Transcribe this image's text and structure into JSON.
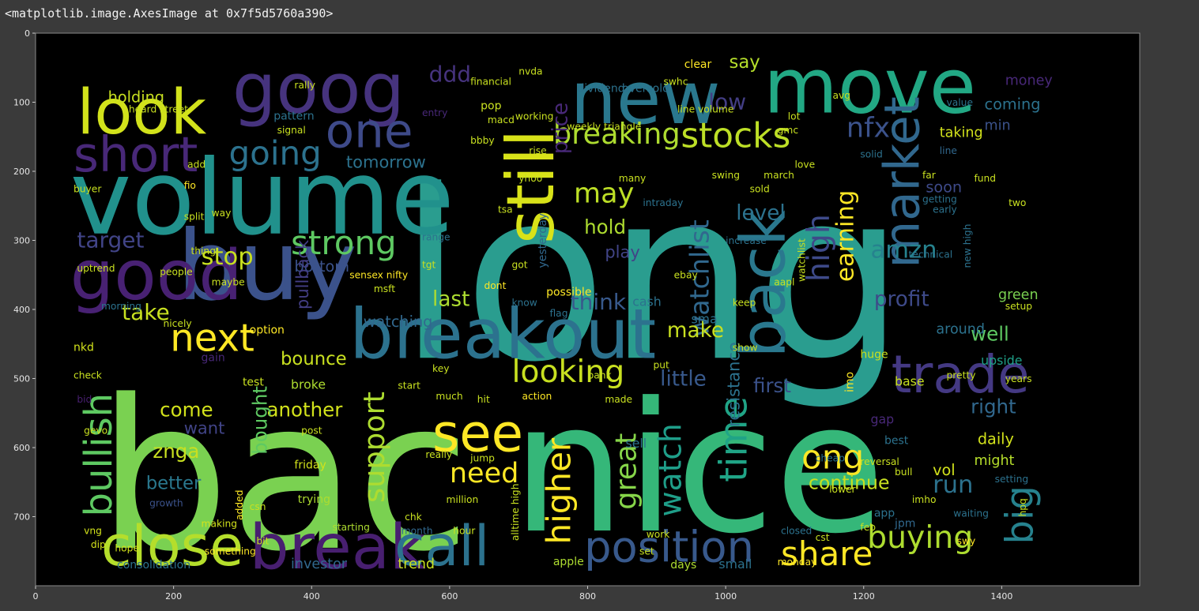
{
  "output_repr": "<matplotlib.image.AxesImage at 0x7f5d5760a390>",
  "image": {
    "background": "#000000",
    "x_ticks": [
      "0",
      "200",
      "400",
      "600",
      "800",
      "1000",
      "1200",
      "1400"
    ],
    "y_ticks": [
      "0",
      "100",
      "200",
      "300",
      "400",
      "500",
      "600",
      "700"
    ]
  },
  "words": [
    {
      "text": "long",
      "color": "#2a9d8f"
    },
    {
      "text": "bac",
      "color": "#7ad151"
    },
    {
      "text": "nice",
      "color": "#35b779"
    },
    {
      "text": "volume",
      "color": "#21918c"
    },
    {
      "text": "buy",
      "color": "#3b528b"
    },
    {
      "text": "goog",
      "color": "#46337e"
    },
    {
      "text": "move",
      "color": "#22a884"
    },
    {
      "text": "new",
      "color": "#2a788e"
    },
    {
      "text": "look",
      "color": "#d2e21b"
    },
    {
      "text": "good",
      "color": "#482173"
    },
    {
      "text": "breakout",
      "color": "#2c728e"
    },
    {
      "text": "still",
      "color": "#d8e219"
    },
    {
      "text": "back",
      "color": "#2a788e"
    },
    {
      "text": "market",
      "color": "#31688e"
    },
    {
      "text": "trade",
      "color": "#443983"
    },
    {
      "text": "break",
      "color": "#481f70"
    },
    {
      "text": "close",
      "color": "#b5de2b"
    },
    {
      "text": "call",
      "color": "#2c728e"
    },
    {
      "text": "position",
      "color": "#38598c"
    },
    {
      "text": "see",
      "color": "#fde725"
    },
    {
      "text": "next",
      "color": "#fde725"
    },
    {
      "text": "short",
      "color": "#482878"
    },
    {
      "text": "one",
      "color": "#3e4a89"
    },
    {
      "text": "going",
      "color": "#2c728e"
    },
    {
      "text": "strong",
      "color": "#5ec962"
    },
    {
      "text": "stocks",
      "color": "#bddf26"
    },
    {
      "text": "breaking",
      "color": "#addc30"
    },
    {
      "text": "looking",
      "color": "#c8e020"
    },
    {
      "text": "time",
      "color": "#20a486"
    },
    {
      "text": "big",
      "color": "#26828e"
    },
    {
      "text": "bullish",
      "color": "#5ec962"
    },
    {
      "text": "higher",
      "color": "#fde725"
    },
    {
      "text": "share",
      "color": "#fde725"
    },
    {
      "text": "buying",
      "color": "#addc30"
    },
    {
      "text": "ong",
      "color": "#fde725"
    },
    {
      "text": "need",
      "color": "#fde725"
    },
    {
      "text": "support",
      "color": "#addc30"
    },
    {
      "text": "great",
      "color": "#86d549"
    },
    {
      "text": "watch",
      "color": "#1f9e89"
    },
    {
      "text": "high",
      "color": "#3e4a89"
    },
    {
      "text": "nfx",
      "color": "#3b528b"
    },
    {
      "text": "may",
      "color": "#bddf26"
    },
    {
      "text": "stop",
      "color": "#c8e020"
    },
    {
      "text": "take",
      "color": "#c8e020"
    },
    {
      "text": "target",
      "color": "#414487"
    },
    {
      "text": "watchlist",
      "color": "#31688e"
    },
    {
      "text": "earning",
      "color": "#fde725"
    },
    {
      "text": "price",
      "color": "#482878"
    },
    {
      "text": "amzn",
      "color": "#26828e"
    },
    {
      "text": "run",
      "color": "#2c728e"
    },
    {
      "text": "continue",
      "color": "#c8e020"
    },
    {
      "text": "profit",
      "color": "#3e4a89"
    },
    {
      "text": "ddd",
      "color": "#46337e"
    },
    {
      "text": "low",
      "color": "#433e85"
    },
    {
      "text": "say",
      "color": "#b5de2b"
    },
    {
      "text": "last",
      "color": "#addc30"
    },
    {
      "text": "think",
      "color": "#38598c"
    },
    {
      "text": "make",
      "color": "#c8e020"
    },
    {
      "text": "little",
      "color": "#38598c"
    },
    {
      "text": "first",
      "color": "#3b528b"
    },
    {
      "text": "level",
      "color": "#2c728e"
    },
    {
      "text": "hold",
      "color": "#addc30"
    },
    {
      "text": "play",
      "color": "#414487"
    },
    {
      "text": "bounce",
      "color": "#c8e020"
    },
    {
      "text": "come",
      "color": "#d2e21b"
    },
    {
      "text": "want",
      "color": "#414487"
    },
    {
      "text": "znga",
      "color": "#c8e020"
    },
    {
      "text": "better",
      "color": "#2a788e"
    },
    {
      "text": "another",
      "color": "#d2e21b"
    },
    {
      "text": "bought",
      "color": "#5ec962"
    },
    {
      "text": "watching",
      "color": "#31688e"
    },
    {
      "text": "tomorrow",
      "color": "#2c728e"
    },
    {
      "text": "bottom",
      "color": "#3b528b"
    },
    {
      "text": "pullback",
      "color": "#433e85"
    },
    {
      "text": "resistance",
      "color": "#2c728e"
    },
    {
      "text": "soon",
      "color": "#3e4a89"
    },
    {
      "text": "taking",
      "color": "#d2e21b"
    },
    {
      "text": "green",
      "color": "#7ad151"
    },
    {
      "text": "well",
      "color": "#5ec962"
    },
    {
      "text": "right",
      "color": "#31688e"
    },
    {
      "text": "daily",
      "color": "#d2e21b"
    },
    {
      "text": "vol",
      "color": "#d2e21b"
    },
    {
      "text": "might",
      "color": "#b5de2b"
    },
    {
      "text": "around",
      "color": "#2c728e"
    },
    {
      "text": "upside",
      "color": "#1fa088"
    },
    {
      "text": "coming",
      "color": "#2c728e"
    },
    {
      "text": "min",
      "color": "#3b528b"
    },
    {
      "text": "money",
      "color": "#482878"
    },
    {
      "text": "holding",
      "color": "#c8e020"
    },
    {
      "text": "trend",
      "color": "#c8e020"
    },
    {
      "text": "investor",
      "color": "#31688e"
    },
    {
      "text": "consolidation",
      "color": "#2c728e"
    },
    {
      "text": "apple",
      "color": "#addc30"
    },
    {
      "text": "days",
      "color": "#addc30"
    },
    {
      "text": "small",
      "color": "#2c728e"
    },
    {
      "text": "monday",
      "color": "#fde725"
    },
    {
      "text": "set",
      "color": "#c8e020"
    },
    {
      "text": "work",
      "color": "#c8e020"
    },
    {
      "text": "sell",
      "color": "#2c728e"
    },
    {
      "text": "test",
      "color": "#c8e020"
    },
    {
      "text": "gain",
      "color": "#482878"
    },
    {
      "text": "broke",
      "color": "#addc30"
    },
    {
      "text": "option",
      "color": "#fde725"
    },
    {
      "text": "nkd",
      "color": "#d2e21b"
    },
    {
      "text": "check",
      "color": "#c8e020"
    },
    {
      "text": "bid",
      "color": "#481f70"
    },
    {
      "text": "gevo",
      "color": "#c8e020"
    },
    {
      "text": "cash",
      "color": "#2c728e"
    },
    {
      "text": "sma",
      "color": "#2c728e"
    },
    {
      "text": "base",
      "color": "#c8e020"
    },
    {
      "text": "huge",
      "color": "#c8e020"
    },
    {
      "text": "gap",
      "color": "#482878"
    },
    {
      "text": "best",
      "color": "#2c728e"
    },
    {
      "text": "app",
      "color": "#2c728e"
    },
    {
      "text": "jpm",
      "color": "#31688e"
    },
    {
      "text": "friday",
      "color": "#d2e21b"
    },
    {
      "text": "trying",
      "color": "#addc30"
    },
    {
      "text": "growth",
      "color": "#3b528b"
    },
    {
      "text": "dip",
      "color": "#d2e21b"
    },
    {
      "text": "hope",
      "color": "#d2e21b"
    },
    {
      "text": "vng",
      "color": "#d2e21b"
    },
    {
      "text": "making",
      "color": "#d2e21b"
    },
    {
      "text": "bit",
      "color": "#c8e020"
    },
    {
      "text": "starting",
      "color": "#addc30"
    },
    {
      "text": "something",
      "color": "#fde725"
    },
    {
      "text": "month",
      "color": "#31688e"
    },
    {
      "text": "hour",
      "color": "#c8e020"
    },
    {
      "text": "million",
      "color": "#c8e020"
    },
    {
      "text": "really",
      "color": "#c8e020"
    },
    {
      "text": "jump",
      "color": "#c8e020"
    },
    {
      "text": "chk",
      "color": "#c8e020"
    },
    {
      "text": "start",
      "color": "#c8e020"
    },
    {
      "text": "much",
      "color": "#c8e020"
    },
    {
      "text": "hit",
      "color": "#c8e020"
    },
    {
      "text": "key",
      "color": "#c8e020"
    },
    {
      "text": "got",
      "color": "#c8e020"
    },
    {
      "text": "dont",
      "color": "#fde725"
    },
    {
      "text": "msft",
      "color": "#c8e020"
    },
    {
      "text": "sensex nifty",
      "color": "#fde725"
    },
    {
      "text": "tgt",
      "color": "#c8e020"
    },
    {
      "text": "range",
      "color": "#2c728e"
    },
    {
      "text": "rise",
      "color": "#c8e020"
    },
    {
      "text": "pop",
      "color": "#c8e020"
    },
    {
      "text": "entry",
      "color": "#482878"
    },
    {
      "text": "macd",
      "color": "#c8e020"
    },
    {
      "text": "weekly triangle",
      "color": "#c8e020"
    },
    {
      "text": "yesterday",
      "color": "#31688e"
    },
    {
      "text": "possible",
      "color": "#fde725"
    },
    {
      "text": "flag",
      "color": "#2c728e"
    },
    {
      "text": "know",
      "color": "#2c728e"
    },
    {
      "text": "put",
      "color": "#c8e020"
    },
    {
      "text": "made",
      "color": "#c8e020"
    },
    {
      "text": "bank",
      "color": "#c8e020"
    },
    {
      "text": "action",
      "color": "#fde725"
    },
    {
      "text": "dividend",
      "color": "#2c728e"
    },
    {
      "text": "oversold",
      "color": "#2c728e"
    },
    {
      "text": "swhc",
      "color": "#c8e020"
    },
    {
      "text": "clear",
      "color": "#fde725"
    },
    {
      "text": "line volume",
      "color": "#c8e020"
    },
    {
      "text": "pattern",
      "color": "#2c728e"
    },
    {
      "text": "signal",
      "color": "#c8e020"
    },
    {
      "text": "heard street",
      "color": "#c8e020"
    },
    {
      "text": "lot",
      "color": "#c8e020"
    },
    {
      "text": "gmc",
      "color": "#c8e020"
    },
    {
      "text": "avg",
      "color": "#c8e020"
    },
    {
      "text": "value",
      "color": "#2c728e"
    },
    {
      "text": "line",
      "color": "#31688e"
    },
    {
      "text": "solid",
      "color": "#2c728e"
    },
    {
      "text": "intraday",
      "color": "#2c728e"
    },
    {
      "text": "sold",
      "color": "#c8e020"
    },
    {
      "text": "swing",
      "color": "#c8e020"
    },
    {
      "text": "getting",
      "color": "#2c728e"
    },
    {
      "text": "early",
      "color": "#2c728e"
    },
    {
      "text": "two",
      "color": "#c8e020"
    },
    {
      "text": "technical",
      "color": "#2c728e"
    },
    {
      "text": "new high",
      "color": "#2c728e"
    },
    {
      "text": "aapl",
      "color": "#c8e020"
    },
    {
      "text": "setup",
      "color": "#c8e020"
    },
    {
      "text": "pretty",
      "color": "#c8e020"
    },
    {
      "text": "years",
      "color": "#c8e020"
    },
    {
      "text": "imo",
      "color": "#fde725"
    },
    {
      "text": "ebay",
      "color": "#c8e020"
    },
    {
      "text": "increase",
      "color": "#2c728e"
    },
    {
      "text": "keep",
      "color": "#c8e020"
    },
    {
      "text": "show",
      "color": "#c8e020"
    },
    {
      "text": "cheap",
      "color": "#2c728e"
    },
    {
      "text": "reversal",
      "color": "#c8e020"
    },
    {
      "text": "lower",
      "color": "#c8e020"
    },
    {
      "text": "imho",
      "color": "#c8e020"
    },
    {
      "text": "waiting",
      "color": "#2c728e"
    },
    {
      "text": "closed",
      "color": "#2c728e"
    },
    {
      "text": "cst",
      "color": "#c8e020"
    },
    {
      "text": "feb",
      "color": "#c8e020"
    },
    {
      "text": "swy",
      "color": "#fde725"
    },
    {
      "text": "hpq",
      "color": "#c8e020"
    },
    {
      "text": "setting",
      "color": "#2c728e"
    },
    {
      "text": "morning",
      "color": "#2c728e"
    },
    {
      "text": "nicely",
      "color": "#c8e020"
    },
    {
      "text": "maybe",
      "color": "#c8e020"
    },
    {
      "text": "people",
      "color": "#c8e020"
    },
    {
      "text": "thing",
      "color": "#c8e020"
    },
    {
      "text": "split",
      "color": "#c8e020"
    },
    {
      "text": "way",
      "color": "#c8e020"
    },
    {
      "text": "fio",
      "color": "#fde725"
    },
    {
      "text": "buyer",
      "color": "#c8e020"
    },
    {
      "text": "add",
      "color": "#c8e020"
    },
    {
      "text": "rally",
      "color": "#c8e020"
    },
    {
      "text": "working",
      "color": "#c8e020"
    },
    {
      "text": "many",
      "color": "#c8e020"
    },
    {
      "text": "added",
      "color": "#fde725"
    },
    {
      "text": "post",
      "color": "#c8e020"
    },
    {
      "text": "csn",
      "color": "#c8e020"
    },
    {
      "text": "love",
      "color": "#c8e020"
    },
    {
      "text": "march",
      "color": "#c8e020"
    },
    {
      "text": "far",
      "color": "#c8e020"
    },
    {
      "text": "fund",
      "color": "#c8e020"
    },
    {
      "text": "bbby",
      "color": "#c8e020"
    },
    {
      "text": "tsa",
      "color": "#c8e020"
    },
    {
      "text": "yhoo",
      "color": "#c8e020"
    },
    {
      "text": "nvda",
      "color": "#c8e020"
    },
    {
      "text": "financial",
      "color": "#c8e020"
    },
    {
      "text": "uptrend",
      "color": "#c8e020"
    },
    {
      "text": "bull",
      "color": "#c8e020"
    },
    {
      "text": "watchlist",
      "color": "#c8e020"
    },
    {
      "text": "alltime high",
      "color": "#c8e020"
    }
  ]
}
